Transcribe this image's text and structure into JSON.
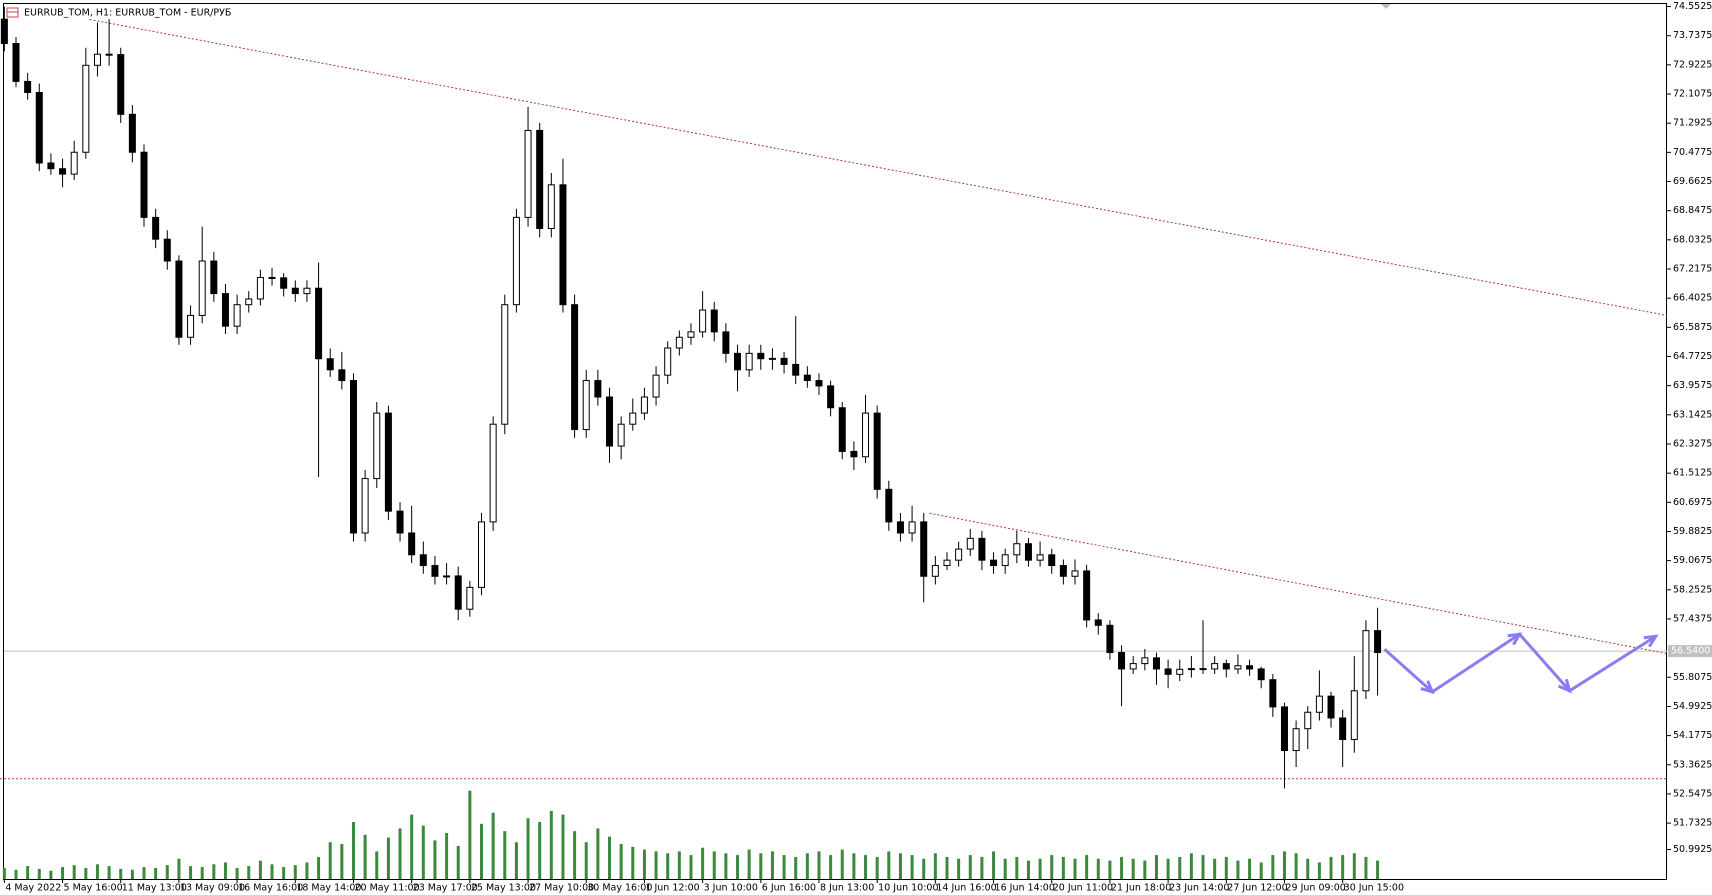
{
  "chart_data": {
    "type": "candlestick",
    "title": "EURRUB_TOM, H1:  EURRUB_TOM - EUR/РУБ",
    "xlim": [
      -0.375,
      142.87
    ],
    "ylim": [
      50.17,
      74.735
    ],
    "yticks": [
      74.5525,
      73.7375,
      72.9225,
      72.1075,
      71.2925,
      70.4775,
      69.6625,
      68.8475,
      68.0325,
      67.2175,
      66.4025,
      65.5875,
      64.7725,
      63.9575,
      63.1425,
      62.3275,
      61.5125,
      60.6975,
      59.8825,
      59.0675,
      58.2525,
      57.4375,
      55.8075,
      54.9925,
      54.1775,
      53.3625,
      52.5475,
      51.7325,
      50.9925
    ],
    "xticks": [
      {
        "value": 0,
        "label": "4 May 2022"
      },
      {
        "value": 5,
        "label": "5 May 16:00"
      },
      {
        "value": 10,
        "label": "11 May 13:00"
      },
      {
        "value": 15,
        "label": "13 May 09:00"
      },
      {
        "value": 20,
        "label": "16 May 16:00"
      },
      {
        "value": 25,
        "label": "18 May 14:00"
      },
      {
        "value": 30,
        "label": "20 May 11:00"
      },
      {
        "value": 35,
        "label": "23 May 17:00"
      },
      {
        "value": 40,
        "label": "25 May 13:00"
      },
      {
        "value": 45,
        "label": "27 May 10:00"
      },
      {
        "value": 50,
        "label": "30 May 16:00"
      },
      {
        "value": 55,
        "label": "1 Jun 12:00"
      },
      {
        "value": 60,
        "label": "3 Jun 10:00"
      },
      {
        "value": 65,
        "label": "6 Jun 16:00"
      },
      {
        "value": 70,
        "label": "8 Jun 13:00"
      },
      {
        "value": 75,
        "label": "10 Jun 10:00"
      },
      {
        "value": 80,
        "label": "14 Jun 16:00"
      },
      {
        "value": 85,
        "label": "16 Jun 14:00"
      },
      {
        "value": 90,
        "label": "20 Jun 11:00"
      },
      {
        "value": 95,
        "label": "21 Jun 18:00"
      },
      {
        "value": 100,
        "label": "23 Jun 14:00"
      },
      {
        "value": 105,
        "label": "27 Jun 12:00"
      },
      {
        "value": 110,
        "label": "29 Jun 09:00"
      },
      {
        "value": 115,
        "label": "30 Jun 15:00"
      }
    ],
    "up_color": "#ffffff",
    "down_color": "#000000",
    "wick_color": "#000000",
    "candles": [
      [
        74.2,
        74.55,
        73.3,
        73.52
      ],
      [
        73.52,
        73.7,
        72.3,
        72.46
      ],
      [
        72.46,
        72.7,
        71.95,
        72.15
      ],
      [
        72.15,
        72.4,
        69.95,
        70.18
      ],
      [
        70.18,
        70.45,
        69.85,
        70.02
      ],
      [
        70.02,
        70.3,
        69.5,
        69.87
      ],
      [
        69.87,
        70.8,
        69.7,
        70.48
      ],
      [
        70.48,
        73.4,
        70.3,
        72.91
      ],
      [
        72.91,
        74.1,
        72.6,
        73.22
      ],
      [
        73.22,
        74.2,
        72.9,
        73.21
      ],
      [
        73.21,
        73.4,
        71.3,
        71.54
      ],
      [
        71.54,
        71.8,
        70.2,
        70.48
      ],
      [
        70.48,
        70.7,
        68.4,
        68.66
      ],
      [
        68.66,
        68.9,
        67.8,
        68.05
      ],
      [
        68.05,
        68.3,
        67.2,
        67.44
      ],
      [
        67.44,
        67.6,
        65.1,
        65.31
      ],
      [
        65.31,
        66.2,
        65.1,
        65.92
      ],
      [
        65.92,
        68.4,
        65.7,
        67.44
      ],
      [
        67.44,
        67.7,
        66.3,
        66.53
      ],
      [
        66.53,
        66.8,
        65.4,
        65.62
      ],
      [
        65.62,
        66.5,
        65.4,
        66.22
      ],
      [
        66.22,
        66.6,
        66.0,
        66.38
      ],
      [
        66.38,
        67.2,
        66.2,
        66.98
      ],
      [
        66.98,
        67.25,
        66.75,
        66.97
      ],
      [
        66.97,
        67.1,
        66.45,
        66.68
      ],
      [
        66.68,
        66.9,
        66.3,
        66.53
      ],
      [
        66.53,
        66.9,
        66.3,
        66.68
      ],
      [
        66.68,
        67.4,
        61.4,
        64.71
      ],
      [
        64.71,
        65.0,
        64.2,
        64.4
      ],
      [
        64.4,
        64.9,
        63.85,
        64.1
      ],
      [
        64.1,
        64.3,
        59.6,
        59.84
      ],
      [
        59.84,
        61.6,
        59.6,
        61.36
      ],
      [
        61.36,
        63.5,
        61.1,
        63.19
      ],
      [
        63.19,
        63.4,
        60.2,
        60.45
      ],
      [
        60.45,
        60.7,
        59.6,
        59.84
      ],
      [
        59.84,
        60.6,
        59.0,
        59.23
      ],
      [
        59.23,
        59.6,
        58.7,
        58.93
      ],
      [
        58.93,
        59.2,
        58.4,
        58.63
      ],
      [
        58.63,
        59.0,
        58.4,
        58.64
      ],
      [
        58.64,
        58.9,
        57.4,
        57.71
      ],
      [
        57.71,
        58.5,
        57.5,
        58.32
      ],
      [
        58.32,
        60.4,
        58.1,
        60.15
      ],
      [
        60.15,
        63.1,
        59.9,
        62.88
      ],
      [
        62.88,
        66.5,
        62.6,
        66.22
      ],
      [
        66.22,
        68.9,
        66.0,
        68.66
      ],
      [
        68.66,
        71.75,
        68.4,
        71.09
      ],
      [
        71.09,
        71.3,
        68.1,
        68.35
      ],
      [
        68.35,
        69.9,
        68.1,
        69.57
      ],
      [
        69.57,
        70.3,
        66.0,
        66.22
      ],
      [
        66.22,
        66.5,
        62.5,
        62.73
      ],
      [
        62.73,
        64.4,
        62.5,
        64.1
      ],
      [
        64.1,
        64.4,
        63.4,
        63.64
      ],
      [
        63.64,
        63.9,
        61.8,
        62.27
      ],
      [
        62.27,
        63.1,
        61.9,
        62.88
      ],
      [
        62.88,
        63.6,
        62.7,
        63.19
      ],
      [
        63.19,
        63.9,
        63.0,
        63.64
      ],
      [
        63.64,
        64.5,
        63.4,
        64.25
      ],
      [
        64.25,
        65.2,
        64.0,
        65.01
      ],
      [
        65.01,
        65.5,
        64.8,
        65.31
      ],
      [
        65.31,
        65.7,
        65.1,
        65.46
      ],
      [
        65.46,
        66.6,
        65.3,
        66.07
      ],
      [
        66.07,
        66.3,
        65.2,
        65.46
      ],
      [
        65.46,
        65.7,
        64.6,
        64.86
      ],
      [
        64.86,
        65.1,
        63.8,
        64.4
      ],
      [
        64.4,
        65.1,
        64.2,
        64.86
      ],
      [
        64.86,
        65.1,
        64.4,
        64.71
      ],
      [
        64.71,
        65.0,
        64.4,
        64.72
      ],
      [
        64.72,
        64.9,
        64.3,
        64.55
      ],
      [
        64.55,
        65.9,
        64.0,
        64.25
      ],
      [
        64.25,
        64.5,
        63.9,
        64.1
      ],
      [
        64.1,
        64.3,
        63.7,
        63.95
      ],
      [
        63.95,
        64.1,
        63.1,
        63.34
      ],
      [
        63.34,
        63.5,
        61.9,
        62.12
      ],
      [
        62.12,
        62.4,
        61.6,
        61.97
      ],
      [
        61.97,
        63.7,
        61.8,
        63.19
      ],
      [
        63.19,
        63.4,
        60.8,
        61.06
      ],
      [
        61.06,
        61.3,
        59.9,
        60.15
      ],
      [
        60.15,
        60.4,
        59.6,
        59.84
      ],
      [
        59.84,
        60.6,
        59.6,
        60.15
      ],
      [
        60.15,
        60.4,
        57.9,
        58.63
      ],
      [
        58.63,
        59.2,
        58.4,
        58.93
      ],
      [
        58.93,
        59.3,
        58.8,
        59.08
      ],
      [
        59.08,
        59.6,
        58.9,
        59.39
      ],
      [
        59.39,
        59.95,
        59.2,
        59.69
      ],
      [
        59.69,
        59.9,
        58.8,
        59.08
      ],
      [
        59.08,
        59.3,
        58.7,
        58.93
      ],
      [
        58.93,
        59.4,
        58.7,
        59.23
      ],
      [
        59.23,
        59.9,
        59.0,
        59.54
      ],
      [
        59.54,
        59.7,
        58.9,
        59.08
      ],
      [
        59.08,
        59.6,
        58.9,
        59.23
      ],
      [
        59.23,
        59.4,
        58.7,
        58.93
      ],
      [
        58.93,
        59.1,
        58.4,
        58.63
      ],
      [
        58.63,
        59.1,
        58.4,
        58.78
      ],
      [
        58.78,
        58.95,
        57.2,
        57.41
      ],
      [
        57.41,
        57.6,
        57.0,
        57.26
      ],
      [
        57.26,
        57.4,
        56.3,
        56.5
      ],
      [
        56.5,
        56.7,
        55.0,
        56.04
      ],
      [
        56.04,
        56.4,
        55.9,
        56.19
      ],
      [
        56.19,
        56.6,
        56.0,
        56.35
      ],
      [
        56.35,
        56.5,
        55.6,
        56.04
      ],
      [
        56.04,
        56.3,
        55.5,
        55.89
      ],
      [
        55.89,
        56.3,
        55.7,
        56.03
      ],
      [
        56.03,
        56.4,
        55.8,
        56.05
      ],
      [
        56.05,
        57.4,
        55.9,
        56.04
      ],
      [
        56.04,
        56.4,
        55.9,
        56.19
      ],
      [
        56.19,
        56.3,
        55.8,
        56.04
      ],
      [
        56.04,
        56.45,
        55.9,
        56.13
      ],
      [
        56.13,
        56.3,
        55.85,
        56.04
      ],
      [
        56.04,
        56.1,
        55.5,
        55.74
      ],
      [
        55.74,
        55.9,
        54.7,
        54.98
      ],
      [
        54.98,
        55.1,
        52.7,
        53.76
      ],
      [
        53.76,
        54.6,
        53.3,
        54.37
      ],
      [
        54.37,
        55.0,
        53.8,
        54.83
      ],
      [
        54.83,
        56.0,
        54.6,
        55.28
      ],
      [
        55.28,
        55.4,
        54.4,
        54.67
      ],
      [
        54.67,
        54.9,
        53.3,
        54.07
      ],
      [
        54.07,
        56.4,
        53.7,
        55.43
      ],
      [
        55.43,
        57.4,
        55.2,
        57.11
      ],
      [
        57.11,
        57.75,
        55.3,
        56.5
      ]
    ],
    "volume_color": "#3b8a3b",
    "volume_ylim": [
      0,
      100
    ],
    "volumes": [
      12,
      10,
      14,
      11,
      9,
      13,
      15,
      12,
      16,
      14,
      11,
      10,
      13,
      12,
      15,
      22,
      14,
      13,
      16,
      18,
      12,
      14,
      20,
      16,
      13,
      15,
      18,
      24,
      40,
      38,
      62,
      48,
      30,
      45,
      55,
      70,
      58,
      42,
      50,
      36,
      96,
      60,
      72,
      52,
      40,
      66,
      62,
      74,
      70,
      52,
      40,
      55,
      46,
      38,
      35,
      32,
      30,
      28,
      30,
      26,
      34,
      30,
      28,
      26,
      32,
      28,
      30,
      26,
      24,
      28,
      30,
      26,
      32,
      28,
      26,
      24,
      30,
      28,
      26,
      22,
      28,
      24,
      22,
      26,
      24,
      30,
      22,
      24,
      20,
      22,
      26,
      24,
      22,
      26,
      22,
      20,
      24,
      22,
      20,
      26,
      22,
      24,
      28,
      26,
      22,
      24,
      20,
      22,
      18,
      26,
      30,
      28,
      22,
      18,
      24,
      26,
      28,
      24,
      20
    ],
    "price_line": {
      "value": 56.54,
      "label": "56.5400"
    },
    "line_color": "#b03a2e",
    "lines": [
      {
        "x": [
          7.32,
          142.87
        ],
        "y": [
          74.19,
          65.92
        ]
      },
      {
        "x": [
          79.5,
          142.87
        ],
        "y": [
          60.39,
          56.47
        ]
      },
      {
        "x": [
          -0.375,
          142.87
        ],
        "y": [
          52.97,
          52.97
        ]
      }
    ],
    "forecast": {
      "color": "#8c7cf0",
      "x": [
        118.6,
        122.7,
        130.2,
        134.5,
        141.9
      ],
      "y": [
        56.59,
        55.4,
        57.01,
        55.43,
        56.95
      ]
    }
  }
}
